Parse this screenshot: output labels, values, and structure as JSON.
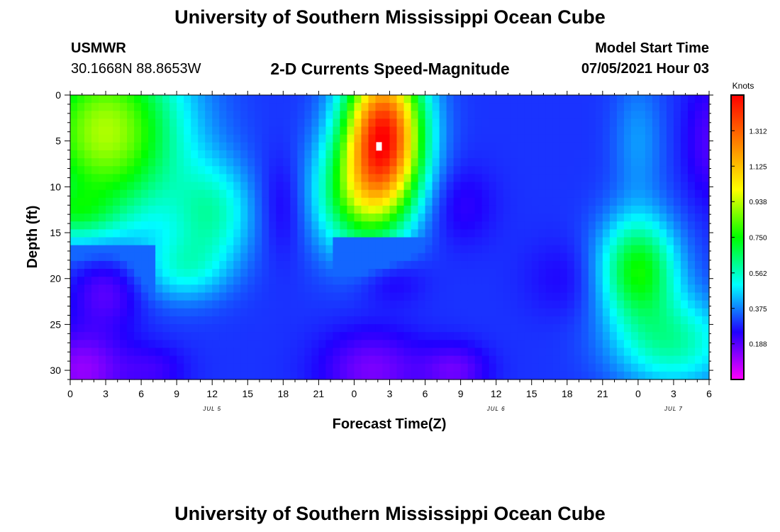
{
  "header": {
    "title": "University of Southern Mississippi Ocean Cube",
    "station": "USMWR",
    "coords": "30.1668N  88.8653W",
    "subtitle": "2-D Currents Speed-Magnitude",
    "model_start_label": "Model Start Time",
    "model_start_value": "07/05/2021 Hour 03"
  },
  "footer": {
    "title": "University of Southern Mississippi Ocean Cube"
  },
  "chart_data": {
    "type": "heatmap",
    "title": "2-D Currents Speed-Magnitude",
    "xlabel": "Forecast Time(Z)",
    "ylabel": "Depth (ft)",
    "x_tick_labels": [
      "0",
      "3",
      "6",
      "9",
      "12",
      "15",
      "18",
      "21",
      "0",
      "3",
      "6",
      "9",
      "12",
      "15",
      "18",
      "21",
      "0",
      "3",
      "6"
    ],
    "x_hours": [
      0,
      54
    ],
    "date_labels": [
      {
        "label": "JUL 5",
        "hour": 12
      },
      {
        "label": "JUL 6",
        "hour": 36
      },
      {
        "label": "JUL 7",
        "hour": 51
      }
    ],
    "y_ticks": [
      0,
      5,
      10,
      15,
      20,
      25,
      30
    ],
    "ylim": [
      0,
      31
    ],
    "y_inverted": true,
    "colorbar": {
      "units": "Knots",
      "min": 0.0,
      "max": 1.5,
      "tick_values": [
        0.188,
        0.375,
        0.562,
        0.75,
        0.938,
        1.125,
        1.312
      ],
      "tick_labels": [
        "0.188",
        "0.375",
        "0.562",
        "0.750",
        "0.938",
        "1.125",
        "1.312"
      ],
      "colormap": [
        "#ff00ff",
        "#2000ff",
        "#00ffff",
        "#00ff00",
        "#ffff00",
        "#ff8000",
        "#ff0000"
      ]
    },
    "speed_field": {
      "units": "Knots",
      "background": 0.3,
      "features": [
        {
          "hour": 3.0,
          "depth": 4,
          "sx": 4.5,
          "sy": 7,
          "amp": 0.62
        },
        {
          "hour": 0.0,
          "depth": 13,
          "sx": 2.5,
          "sy": 2,
          "amp": 0.2
        },
        {
          "hour": 12.0,
          "depth": 13,
          "sx": 2.5,
          "sy": 4,
          "amp": 0.25
        },
        {
          "hour": 9.5,
          "depth": 19,
          "sx": 2.5,
          "sy": 2.5,
          "amp": 0.18
        },
        {
          "hour": 26.5,
          "depth": 4,
          "sx": 2.3,
          "sy": 5.5,
          "amp": 1.1
        },
        {
          "hour": 24.5,
          "depth": 11,
          "sx": 2.8,
          "sy": 4.5,
          "amp": 0.42
        },
        {
          "hour": 48.0,
          "depth": 19,
          "sx": 2.3,
          "sy": 4.0,
          "amp": 0.45
        },
        {
          "hour": 51.0,
          "depth": 27,
          "sx": 3.5,
          "sy": 3.5,
          "amp": 0.28
        },
        {
          "hour": 48.0,
          "depth": 5,
          "sx": 1.5,
          "sy": 5,
          "amp": 0.1
        },
        {
          "hour": 3.0,
          "depth": 21,
          "sx": 2.2,
          "sy": 3,
          "amp": -0.14
        },
        {
          "hour": 1.0,
          "depth": 30,
          "sx": 2.5,
          "sy": 3,
          "amp": -0.18
        },
        {
          "hour": 18.0,
          "depth": 12,
          "sx": 1.5,
          "sy": 4,
          "amp": -0.08
        },
        {
          "hour": 25.5,
          "depth": 30,
          "sx": 3.0,
          "sy": 3,
          "amp": -0.15
        },
        {
          "hour": 27.0,
          "depth": 20,
          "sx": 2.0,
          "sy": 2,
          "amp": -0.08
        },
        {
          "hour": 33.0,
          "depth": 12,
          "sx": 2.0,
          "sy": 3,
          "amp": -0.07
        },
        {
          "hour": 32.5,
          "depth": 30,
          "sx": 2.0,
          "sy": 2,
          "amp": -0.13
        },
        {
          "hour": 42.0,
          "depth": 20,
          "sx": 2.5,
          "sy": 3,
          "amp": -0.05
        },
        {
          "hour": 54.0,
          "depth": 5,
          "sx": 1.5,
          "sy": 5,
          "amp": -0.1
        },
        {
          "hour": 7.0,
          "depth": 30,
          "sx": 2.0,
          "sy": 2,
          "amp": -0.08
        }
      ],
      "cutoffs": [
        {
          "from_hour": 22.0,
          "to_hour": 30.5,
          "depth_max": 15.5
        },
        {
          "from_hour": 0.0,
          "to_hour": 7.0,
          "depth_max": 16.0
        }
      ]
    }
  }
}
